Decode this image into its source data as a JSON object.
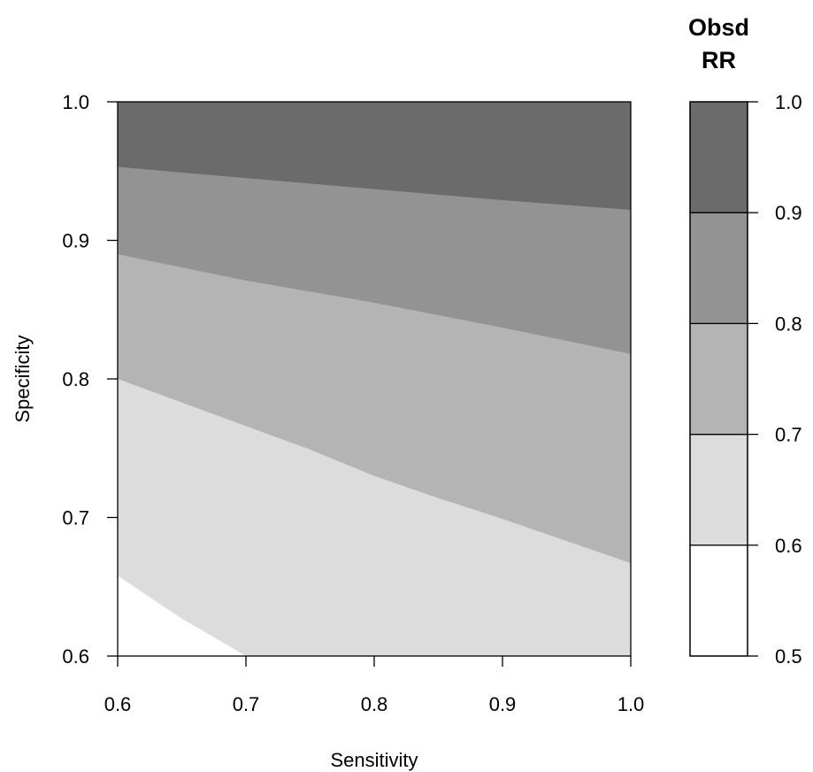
{
  "chart_data": {
    "type": "filled-contour",
    "xlabel": "Sensitivity",
    "ylabel": "Specificity",
    "xlim": [
      0.6,
      1.0
    ],
    "ylim": [
      0.6,
      1.0
    ],
    "xticks": [
      "0.6",
      "0.7",
      "0.8",
      "0.9",
      "1.0"
    ],
    "yticks": [
      "0.6",
      "0.7",
      "0.8",
      "0.9",
      "1.0"
    ],
    "legend": {
      "title_line1": "Obsd",
      "title_line2": "RR",
      "range": [
        0.5,
        1.0
      ],
      "break_values": [
        0.5,
        0.6,
        0.7,
        0.8,
        0.9,
        1.0
      ],
      "tick_labels": [
        "0.5",
        "0.6",
        "0.7",
        "0.8",
        "0.9",
        "1.0"
      ]
    },
    "bands": [
      {
        "range": [
          0.5,
          0.6
        ],
        "color": "#ffffff",
        "upper_boundary": [
          [
            0.6,
            0.658
          ],
          [
            0.65,
            0.627
          ],
          [
            0.7,
            0.6
          ]
        ]
      },
      {
        "range": [
          0.6,
          0.7
        ],
        "color": "#dcdcdc",
        "upper_boundary": [
          [
            0.6,
            0.8
          ],
          [
            0.7,
            0.766
          ],
          [
            0.75,
            0.749
          ],
          [
            0.8,
            0.73
          ],
          [
            0.85,
            0.714
          ],
          [
            0.9,
            0.699
          ],
          [
            1.0,
            0.667
          ]
        ]
      },
      {
        "range": [
          0.7,
          0.8
        ],
        "color": "#b4b4b4",
        "upper_boundary": [
          [
            0.6,
            0.89
          ],
          [
            0.7,
            0.871
          ],
          [
            0.8,
            0.855
          ],
          [
            0.9,
            0.837
          ],
          [
            1.0,
            0.818
          ]
        ]
      },
      {
        "range": [
          0.8,
          0.9
        ],
        "color": "#939393",
        "upper_boundary": [
          [
            0.6,
            0.953
          ],
          [
            0.7,
            0.945
          ],
          [
            0.8,
            0.937
          ],
          [
            0.9,
            0.929
          ],
          [
            1.0,
            0.922
          ]
        ]
      },
      {
        "range": [
          0.9,
          1.0
        ],
        "color": "#6b6b6b",
        "upper_boundary": [
          [
            0.6,
            1.0
          ],
          [
            1.0,
            1.0
          ]
        ]
      }
    ]
  }
}
